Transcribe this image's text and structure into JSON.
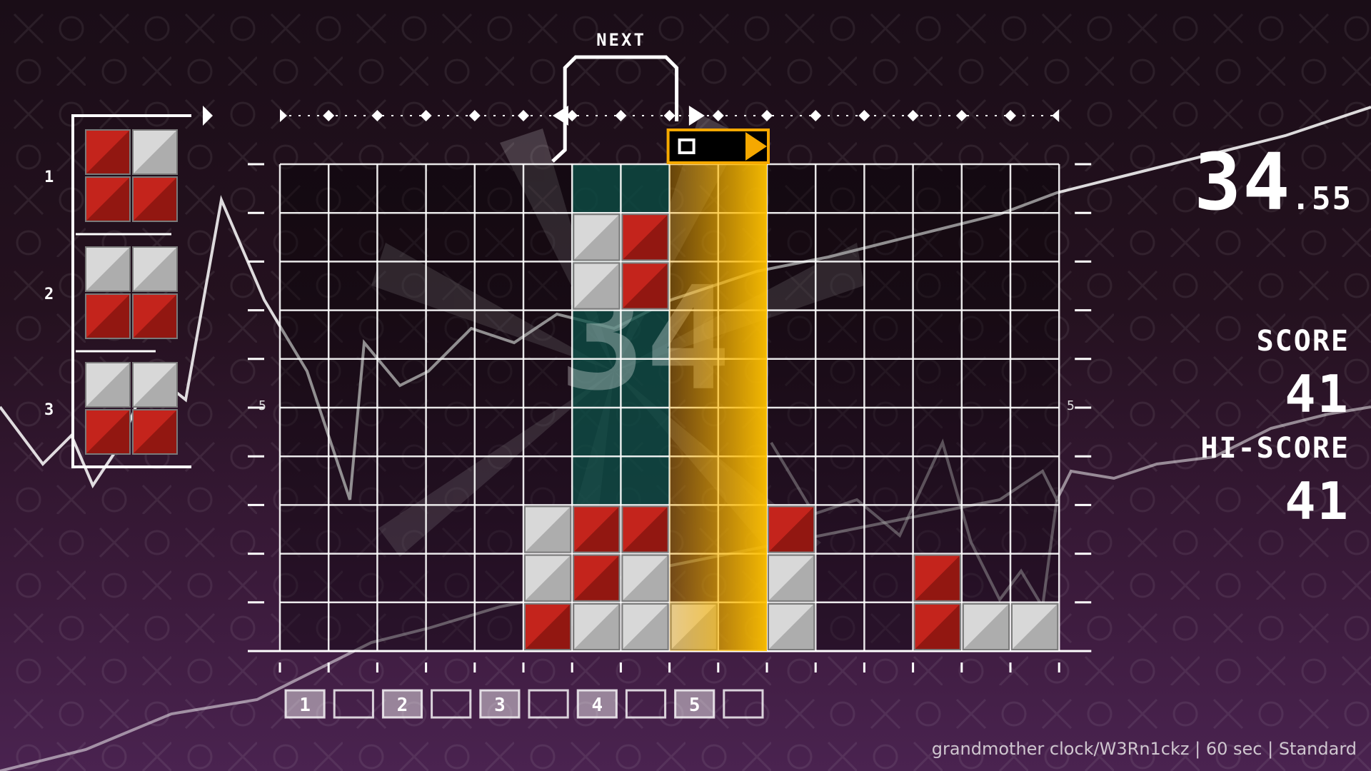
{
  "hud": {
    "next_label": "NEXT",
    "timer_main": "34",
    "timer_sub": ".55",
    "score_label": "SCORE",
    "score_value": "41",
    "hiscore_label": "HI-SCORE",
    "hiscore_value": "41",
    "song_info": "grandmother clock/W3Rn1ckz | 60 sec | Standard",
    "big_overlay_number": "34",
    "row_marker_left": "5",
    "row_marker_right": "5"
  },
  "queue": [
    {
      "number": "1",
      "cells": [
        "R",
        "W",
        "R",
        "R"
      ]
    },
    {
      "number": "2",
      "cells": [
        "W",
        "W",
        "R",
        "R"
      ]
    },
    {
      "number": "3",
      "cells": [
        "W",
        "W",
        "R",
        "R"
      ]
    }
  ],
  "current_piece": {
    "cells": [
      "W",
      "R",
      "W",
      "R"
    ]
  },
  "board": {
    "cols": 16,
    "rows": 10,
    "bottom_rows": [
      [
        "",
        "",
        "",
        "",
        "",
        "W",
        "R",
        "R",
        "",
        "",
        "R",
        "",
        "",
        "",
        "",
        ""
      ],
      [
        "",
        "",
        "",
        "",
        "",
        "W",
        "R",
        "W",
        "",
        "",
        "W",
        "",
        "",
        "R",
        "",
        ""
      ],
      [
        "",
        "",
        "",
        "",
        "",
        "R",
        "W",
        "W",
        "W",
        "",
        "W",
        "",
        "",
        "R",
        "W",
        "W"
      ]
    ]
  },
  "beat_markers": [
    "1",
    "",
    "2",
    "",
    "3",
    "",
    "4",
    "",
    "5",
    ""
  ],
  "colors": {
    "red": "#c4241c",
    "white": "#d8d8d8",
    "timeline": "#f5a800",
    "teal": "#0c5248"
  }
}
